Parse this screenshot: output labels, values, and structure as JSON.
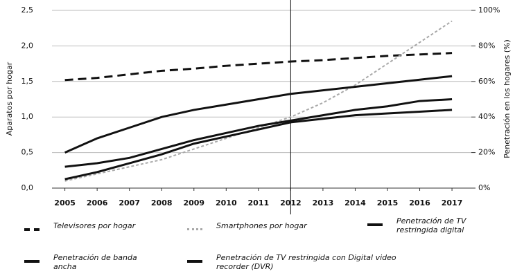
{
  "chart_data": {
    "type": "line",
    "y_label": "Aparatos por hogar",
    "y2_label": "Penetración en los hogares (%)",
    "x": [
      2005,
      2006,
      2007,
      2008,
      2009,
      2010,
      2011,
      2012,
      2013,
      2014,
      2015,
      2016,
      2017
    ],
    "xlim": [
      2004.6,
      2017.6
    ],
    "xticks": [
      2005,
      2006,
      2007,
      2008,
      2009,
      2010,
      2011,
      2012,
      2013,
      2014,
      2015,
      2016,
      2017
    ],
    "ylim": [
      0,
      2.5
    ],
    "yticks": [
      {
        "value": 0,
        "label": "0,0"
      },
      {
        "value": 0.5,
        "label": "0,5"
      },
      {
        "value": 1,
        "label": "1,0"
      },
      {
        "value": 1.5,
        "label": "1,5"
      },
      {
        "value": 2,
        "label": "2,0"
      },
      {
        "value": 2.5,
        "label": "2,5"
      }
    ],
    "y2lim": [
      0,
      100
    ],
    "y2ticks": [
      {
        "value": 0,
        "label": "0%"
      },
      {
        "value": 20,
        "label": "20%"
      },
      {
        "value": 40,
        "label": "40%"
      },
      {
        "value": 60,
        "label": "60%"
      },
      {
        "value": 80,
        "label": "80%"
      },
      {
        "value": 100,
        "label": "100%"
      }
    ],
    "grid": true,
    "vline": 2012,
    "series": [
      {
        "name": "Televisores por hogar",
        "color": "#111111",
        "style": "dashed",
        "width": 3,
        "values": [
          1.52,
          1.55,
          1.6,
          1.65,
          1.68,
          1.72,
          1.75,
          1.78,
          1.8,
          1.83,
          1.86,
          1.88,
          1.9
        ]
      },
      {
        "name": "Smartphones por hogar",
        "color": "#a8a8a8",
        "style": "dotted",
        "width": 2,
        "values": [
          0.1,
          0.2,
          0.3,
          0.4,
          0.55,
          0.7,
          0.85,
          1.0,
          1.2,
          1.45,
          1.75,
          2.05,
          2.35
        ]
      },
      {
        "name": "Penetración de TV restringida digital",
        "color": "#111111",
        "style": "solid",
        "width": 3,
        "axis": "y2",
        "values": [
          5,
          9,
          14,
          19,
          25,
          29,
          33,
          37,
          39,
          41,
          42,
          43,
          44
        ]
      },
      {
        "name": "Penetración de banda ancha",
        "color": "#111111",
        "style": "solid",
        "width": 3,
        "axis": "y2",
        "values": [
          20,
          28,
          34,
          40,
          44,
          47,
          50,
          53,
          55,
          57,
          59,
          61,
          63
        ]
      },
      {
        "name": "Penetración de TV restringida con Digital video recorder (DVR)",
        "color": "#111111",
        "style": "solid",
        "width": 3,
        "axis": "y2",
        "values": [
          12,
          14,
          17,
          22,
          27,
          31,
          35,
          38,
          41,
          44,
          46,
          49,
          50
        ]
      }
    ]
  }
}
